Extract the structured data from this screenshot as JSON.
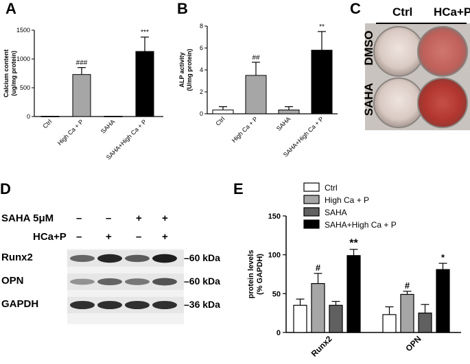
{
  "panels": {
    "A": "A",
    "B": "B",
    "C": "C",
    "D": "D",
    "E": "E"
  },
  "chart_data": [
    {
      "id": "A",
      "type": "bar",
      "ylabel": "Calcium content\n(ug/mg protein)",
      "ylim": [
        0,
        1500
      ],
      "yticks": [
        0,
        500,
        1000,
        1500
      ],
      "categories": [
        "Ctrl",
        "High Ca + P",
        "SAHA",
        "SAHA+High Ca + P"
      ],
      "values": [
        5,
        730,
        5,
        1130
      ],
      "errors": [
        0,
        120,
        0,
        250
      ],
      "colors": [
        "#ffffff",
        "#a6a6a6",
        "#d9d9d9",
        "#000000"
      ],
      "annotations": [
        "",
        "###",
        "",
        "***"
      ]
    },
    {
      "id": "B",
      "type": "bar",
      "ylabel": "ALP activity\n(U/mg protein)",
      "ylim": [
        0,
        8
      ],
      "yticks": [
        0,
        2,
        4,
        6,
        8
      ],
      "categories": [
        "Ctrl",
        "High Ca + P",
        "SAHA",
        "SAHA+High Ca + P"
      ],
      "values": [
        0.35,
        3.5,
        0.35,
        5.8
      ],
      "errors": [
        0.3,
        1.2,
        0.3,
        1.7
      ],
      "colors": [
        "#ffffff",
        "#a6a6a6",
        "#a6a6a6",
        "#000000"
      ],
      "annotations": [
        "",
        "##",
        "",
        "**"
      ]
    },
    {
      "id": "E",
      "type": "bar",
      "ylabel": "protein levels\n(% GAPDH)",
      "ylim": [
        0,
        150
      ],
      "yticks": [
        0,
        50,
        100,
        150
      ],
      "categories": [
        "Runx2",
        "OPN"
      ],
      "series": [
        {
          "name": "Ctrl",
          "color": "#ffffff",
          "values": [
            35,
            23
          ],
          "errors": [
            8,
            10
          ]
        },
        {
          "name": "High Ca + P",
          "color": "#a6a6a6",
          "values": [
            63,
            49
          ],
          "errors": [
            13,
            4
          ]
        },
        {
          "name": "SAHA",
          "color": "#606060",
          "values": [
            35,
            25
          ],
          "errors": [
            5,
            11
          ]
        },
        {
          "name": "SAHA+High Ca + P",
          "color": "#000000",
          "values": [
            99,
            81
          ],
          "errors": [
            8,
            8
          ]
        }
      ],
      "annotations": [
        [
          "",
          "#",
          "",
          "**"
        ],
        [
          "",
          "#",
          "",
          "*"
        ]
      ],
      "legend": "top"
    }
  ],
  "panelC": {
    "col_labels": [
      "Ctrl",
      "HCa+P"
    ],
    "row_labels": [
      "DMSO",
      "SAHA"
    ]
  },
  "panelD": {
    "saha_label": "SAHA 5μM",
    "hcap_label": "HCa+P",
    "saha_signs": [
      "–",
      "–",
      "+",
      "+"
    ],
    "hcap_signs": [
      "–",
      "+",
      "–",
      "+"
    ],
    "bands": [
      {
        "name": "Runx2",
        "kda": "60 kDa",
        "intensity": [
          0.55,
          0.9,
          0.6,
          0.95
        ]
      },
      {
        "name": "OPN",
        "kda": "60 kDa",
        "intensity": [
          0.3,
          0.55,
          0.45,
          0.65
        ]
      },
      {
        "name": "GAPDH",
        "kda": "36 kDa",
        "intensity": [
          0.85,
          0.85,
          0.85,
          0.85
        ]
      }
    ]
  }
}
